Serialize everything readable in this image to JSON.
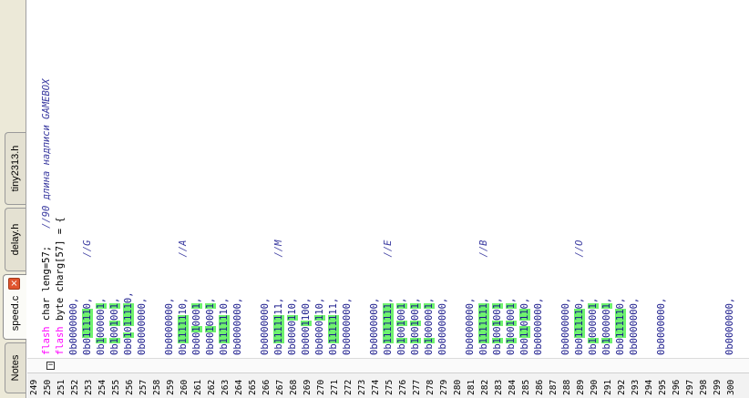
{
  "tabs": [
    {
      "label": "tiny2313.h"
    },
    {
      "label": "delay.h"
    },
    {
      "label": "speed.c"
    },
    {
      "label": "Notes"
    }
  ],
  "close_icon": "×",
  "fold_icon": "−",
  "lines": [
    {
      "n": "249",
      "text": ""
    },
    {
      "n": "250",
      "segments": [
        {
          "t": "flash",
          "c": "kw"
        },
        {
          "t": " char leng=57;   "
        },
        {
          "t": "//90 длина надписи GAMEBOX",
          "c": "cm"
        }
      ]
    },
    {
      "n": "251",
      "segments": [
        {
          "t": "flash",
          "c": "kw"
        },
        {
          "t": " byte charg[57] = {"
        }
      ]
    },
    {
      "n": "252",
      "segments": [
        {
          "t": "0b0000000,",
          "c": "num"
        }
      ]
    },
    {
      "n": "253",
      "segments": [
        {
          "t": "0b0",
          "c": "num"
        },
        {
          "t": "11111",
          "c": "num hl"
        },
        {
          "t": "0,       ",
          "c": "num"
        },
        {
          "t": "//G",
          "c": "cm"
        }
      ]
    },
    {
      "n": "254",
      "segments": [
        {
          "t": "0b",
          "c": "num"
        },
        {
          "t": "1",
          "c": "num hl"
        },
        {
          "t": "00000",
          "c": "num"
        },
        {
          "t": "1",
          "c": "num hl"
        },
        {
          "t": ",",
          "c": "num"
        }
      ]
    },
    {
      "n": "255",
      "segments": [
        {
          "t": "0b",
          "c": "num"
        },
        {
          "t": "1",
          "c": "num hl"
        },
        {
          "t": "00",
          "c": "num"
        },
        {
          "t": "1",
          "c": "num hl"
        },
        {
          "t": "00",
          "c": "num"
        },
        {
          "t": "1",
          "c": "num hl"
        },
        {
          "t": ",",
          "c": "num"
        }
      ]
    },
    {
      "n": "256",
      "segments": [
        {
          "t": "0b0",
          "c": "num"
        },
        {
          "t": "1",
          "c": "num hl"
        },
        {
          "t": "0",
          "c": "num"
        },
        {
          "t": "1111",
          "c": "num hl"
        },
        {
          "t": "0,",
          "c": "num"
        }
      ]
    },
    {
      "n": "257",
      "segments": [
        {
          "t": "0b0000000,",
          "c": "num"
        }
      ]
    },
    {
      "n": "258",
      "text": ""
    },
    {
      "n": "259",
      "segments": [
        {
          "t": "0b0000000,",
          "c": "num"
        }
      ]
    },
    {
      "n": "260",
      "segments": [
        {
          "t": "0b",
          "c": "num"
        },
        {
          "t": "11111",
          "c": "num hl"
        },
        {
          "t": "10,       ",
          "c": "num"
        },
        {
          "t": "//A",
          "c": "cm"
        }
      ]
    },
    {
      "n": "261",
      "segments": [
        {
          "t": "0b00",
          "c": "num"
        },
        {
          "t": "1",
          "c": "num hl"
        },
        {
          "t": "000",
          "c": "num"
        },
        {
          "t": "1",
          "c": "num hl"
        },
        {
          "t": ",",
          "c": "num"
        }
      ]
    },
    {
      "n": "262",
      "segments": [
        {
          "t": "0b00",
          "c": "num"
        },
        {
          "t": "1",
          "c": "num hl"
        },
        {
          "t": "000",
          "c": "num"
        },
        {
          "t": "1",
          "c": "num hl"
        },
        {
          "t": ",",
          "c": "num"
        }
      ]
    },
    {
      "n": "263",
      "segments": [
        {
          "t": "0b",
          "c": "num"
        },
        {
          "t": "11111",
          "c": "num hl"
        },
        {
          "t": "10,",
          "c": "num"
        }
      ]
    },
    {
      "n": "264",
      "segments": [
        {
          "t": "0b0000000,",
          "c": "num"
        }
      ]
    },
    {
      "n": "265",
      "text": ""
    },
    {
      "n": "266",
      "segments": [
        {
          "t": "0b0000000,",
          "c": "num"
        }
      ]
    },
    {
      "n": "267",
      "segments": [
        {
          "t": "0b",
          "c": "num"
        },
        {
          "t": "11111",
          "c": "num hl"
        },
        {
          "t": "11,       ",
          "c": "num"
        },
        {
          "t": "//M",
          "c": "cm"
        }
      ]
    },
    {
      "n": "268",
      "segments": [
        {
          "t": "0b0000",
          "c": "num"
        },
        {
          "t": "1",
          "c": "num hl"
        },
        {
          "t": "10,",
          "c": "num"
        }
      ]
    },
    {
      "n": "269",
      "segments": [
        {
          "t": "0b000",
          "c": "num"
        },
        {
          "t": "1",
          "c": "num hl"
        },
        {
          "t": "100,",
          "c": "num"
        }
      ]
    },
    {
      "n": "270",
      "segments": [
        {
          "t": "0b0000",
          "c": "num"
        },
        {
          "t": "1",
          "c": "num hl"
        },
        {
          "t": "10,",
          "c": "num"
        }
      ]
    },
    {
      "n": "271",
      "segments": [
        {
          "t": "0b",
          "c": "num"
        },
        {
          "t": "11111",
          "c": "num hl"
        },
        {
          "t": "11,",
          "c": "num"
        }
      ]
    },
    {
      "n": "272",
      "segments": [
        {
          "t": "0b0000000,",
          "c": "num"
        }
      ]
    },
    {
      "n": "273",
      "text": ""
    },
    {
      "n": "274",
      "segments": [
        {
          "t": "0b0000000,",
          "c": "num"
        }
      ]
    },
    {
      "n": "275",
      "segments": [
        {
          "t": "0b",
          "c": "num"
        },
        {
          "t": "1111111",
          "c": "num hl"
        },
        {
          "t": ",       ",
          "c": "num"
        },
        {
          "t": "//E",
          "c": "cm"
        }
      ]
    },
    {
      "n": "276",
      "segments": [
        {
          "t": "0b",
          "c": "num"
        },
        {
          "t": "1",
          "c": "num hl"
        },
        {
          "t": "00",
          "c": "num"
        },
        {
          "t": "1",
          "c": "num hl"
        },
        {
          "t": "00",
          "c": "num"
        },
        {
          "t": "1",
          "c": "num hl"
        },
        {
          "t": ",",
          "c": "num"
        }
      ]
    },
    {
      "n": "277",
      "segments": [
        {
          "t": "0b",
          "c": "num"
        },
        {
          "t": "1",
          "c": "num hl"
        },
        {
          "t": "00",
          "c": "num"
        },
        {
          "t": "1",
          "c": "num hl"
        },
        {
          "t": "00",
          "c": "num"
        },
        {
          "t": "1",
          "c": "num hl"
        },
        {
          "t": ",",
          "c": "num"
        }
      ]
    },
    {
      "n": "278",
      "segments": [
        {
          "t": "0b",
          "c": "num"
        },
        {
          "t": "1",
          "c": "num hl"
        },
        {
          "t": "00000",
          "c": "num"
        },
        {
          "t": "1",
          "c": "num hl"
        },
        {
          "t": ",",
          "c": "num"
        }
      ]
    },
    {
      "n": "279",
      "segments": [
        {
          "t": "0b0000000,",
          "c": "num"
        }
      ]
    },
    {
      "n": "280",
      "text": ""
    },
    {
      "n": "281",
      "segments": [
        {
          "t": "0b0000000,",
          "c": "num"
        }
      ]
    },
    {
      "n": "282",
      "segments": [
        {
          "t": "0b",
          "c": "num"
        },
        {
          "t": "1111111",
          "c": "num hl"
        },
        {
          "t": ",       ",
          "c": "num"
        },
        {
          "t": "//B",
          "c": "cm"
        }
      ]
    },
    {
      "n": "283",
      "segments": [
        {
          "t": "0b",
          "c": "num"
        },
        {
          "t": "1",
          "c": "num hl"
        },
        {
          "t": "00",
          "c": "num"
        },
        {
          "t": "1",
          "c": "num hl"
        },
        {
          "t": "00",
          "c": "num"
        },
        {
          "t": "1",
          "c": "num hl"
        },
        {
          "t": ",",
          "c": "num"
        }
      ]
    },
    {
      "n": "284",
      "segments": [
        {
          "t": "0b",
          "c": "num"
        },
        {
          "t": "1",
          "c": "num hl"
        },
        {
          "t": "00",
          "c": "num"
        },
        {
          "t": "1",
          "c": "num hl"
        },
        {
          "t": "00",
          "c": "num"
        },
        {
          "t": "1",
          "c": "num hl"
        },
        {
          "t": ",",
          "c": "num"
        }
      ]
    },
    {
      "n": "285",
      "segments": [
        {
          "t": "0b0",
          "c": "num"
        },
        {
          "t": "11",
          "c": "num hl"
        },
        {
          "t": "0",
          "c": "num"
        },
        {
          "t": "11",
          "c": "num hl"
        },
        {
          "t": "0,",
          "c": "num"
        }
      ]
    },
    {
      "n": "286",
      "segments": [
        {
          "t": "0b0000000,",
          "c": "num"
        }
      ]
    },
    {
      "n": "287",
      "text": ""
    },
    {
      "n": "288",
      "segments": [
        {
          "t": "0b0000000,",
          "c": "num"
        }
      ]
    },
    {
      "n": "289",
      "segments": [
        {
          "t": "0b0",
          "c": "num"
        },
        {
          "t": "11111",
          "c": "num hl"
        },
        {
          "t": "0,       ",
          "c": "num"
        },
        {
          "t": "//O",
          "c": "cm"
        }
      ]
    },
    {
      "n": "290",
      "segments": [
        {
          "t": "0b",
          "c": "num"
        },
        {
          "t": "1",
          "c": "num hl"
        },
        {
          "t": "00000",
          "c": "num"
        },
        {
          "t": "1",
          "c": "num hl"
        },
        {
          "t": ",",
          "c": "num"
        }
      ]
    },
    {
      "n": "291",
      "segments": [
        {
          "t": "0b",
          "c": "num"
        },
        {
          "t": "1",
          "c": "num hl"
        },
        {
          "t": "00000",
          "c": "num"
        },
        {
          "t": "1",
          "c": "num hl"
        },
        {
          "t": ",",
          "c": "num"
        }
      ]
    },
    {
      "n": "292",
      "segments": [
        {
          "t": "0b0",
          "c": "num"
        },
        {
          "t": "11111",
          "c": "num hl"
        },
        {
          "t": "0,",
          "c": "num"
        }
      ]
    },
    {
      "n": "293",
      "segments": [
        {
          "t": "0b0000000,",
          "c": "num"
        }
      ]
    },
    {
      "n": "294",
      "text": ""
    },
    {
      "n": "295",
      "segments": [
        {
          "t": "0b0000000,",
          "c": "num"
        }
      ]
    },
    {
      "n": "296",
      "text": ""
    },
    {
      "n": "297",
      "text": ""
    },
    {
      "n": "298",
      "text": ""
    },
    {
      "n": "299",
      "text": ""
    },
    {
      "n": "300",
      "segments": [
        {
          "t": "0b0000000,",
          "c": "num"
        }
      ]
    }
  ]
}
